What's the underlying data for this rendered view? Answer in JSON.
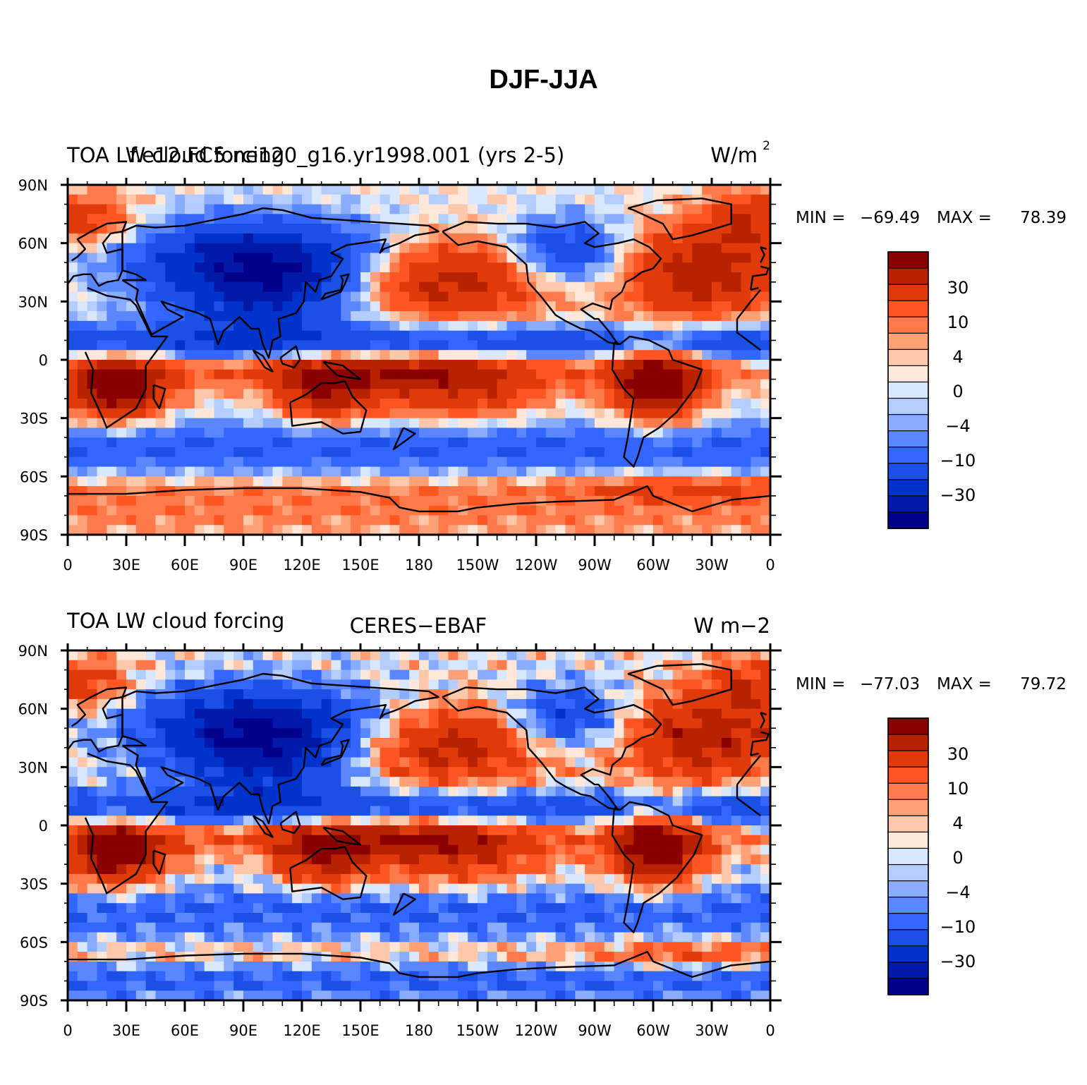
{
  "figure": {
    "title": "DJF-JJA"
  },
  "colors": {
    "palette": [
      "#00008b",
      "#0019a8",
      "#0033cc",
      "#1a50e6",
      "#3366ff",
      "#5a86ff",
      "#8aacff",
      "#b3cdff",
      "#d9e8ff",
      "#ffe8d9",
      "#ffc8aa",
      "#ffa077",
      "#ff7a4a",
      "#ff5522",
      "#e03a0a",
      "#b82200",
      "#8b0000"
    ],
    "coast": "#000000"
  },
  "panels": [
    {
      "left_title": "TOA LW cloud forcing",
      "center_title": "f.e12.FC5.ne120_g16.yr1998.001 (yrs 2-5)",
      "units_text": "W/m",
      "units_sup": "2",
      "min_label": "MIN = ",
      "min_value": "−69.49",
      "max_label": "MAX = ",
      "max_value": "78.39",
      "colorbar_labels": [
        "30",
        "10",
        "4",
        "0",
        "−4",
        "−10",
        "−30"
      ]
    },
    {
      "left_title": "TOA LW cloud forcing",
      "center_title": "CERES−EBAF",
      "units_text": "W m−2",
      "units_sup": "",
      "min_label": "MIN = ",
      "min_value": "−77.03",
      "max_label": "MAX = ",
      "max_value": "79.72",
      "colorbar_labels": [
        "30",
        "10",
        "4",
        "0",
        "−4",
        "−10",
        "−30"
      ]
    }
  ],
  "axes": {
    "lat_labels": [
      "90N",
      "60N",
      "30N",
      "0",
      "30S",
      "60S",
      "90S"
    ],
    "lon_labels": [
      "0",
      "30E",
      "60E",
      "90E",
      "120E",
      "150E",
      "180",
      "150W",
      "120W",
      "90W",
      "60W",
      "30W",
      "0"
    ]
  }
}
